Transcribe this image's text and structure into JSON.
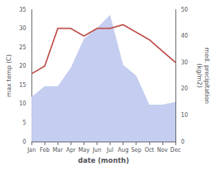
{
  "chart_data": {
    "type": "line",
    "categories": [
      "Jan",
      "Feb",
      "Mar",
      "Apr",
      "May",
      "Jun",
      "Jul",
      "Aug",
      "Sep",
      "Oct",
      "Nov",
      "Dec"
    ],
    "xlabel": "date (month)",
    "ylabel": "max temp (C)",
    "y2label": "med. precipitation\n(kg/m2)",
    "series": [
      {
        "type": "area",
        "axis": "y2",
        "color": "#c5cef0",
        "values": [
          17,
          21,
          21,
          28,
          39,
          43,
          48,
          29,
          25,
          14,
          14,
          15
        ]
      },
      {
        "type": "line",
        "color": "#c0504d",
        "values": [
          18,
          20,
          30,
          30,
          28,
          30,
          30,
          31,
          29,
          27,
          24,
          21
        ]
      }
    ],
    "ylim": [
      0,
      35
    ],
    "yticks": [
      0,
      5,
      10,
      15,
      20,
      25,
      30,
      35
    ],
    "y2lim": [
      0,
      50
    ],
    "y2ticks": [
      0,
      10,
      20,
      30,
      40,
      50
    ],
    "grid": false
  }
}
